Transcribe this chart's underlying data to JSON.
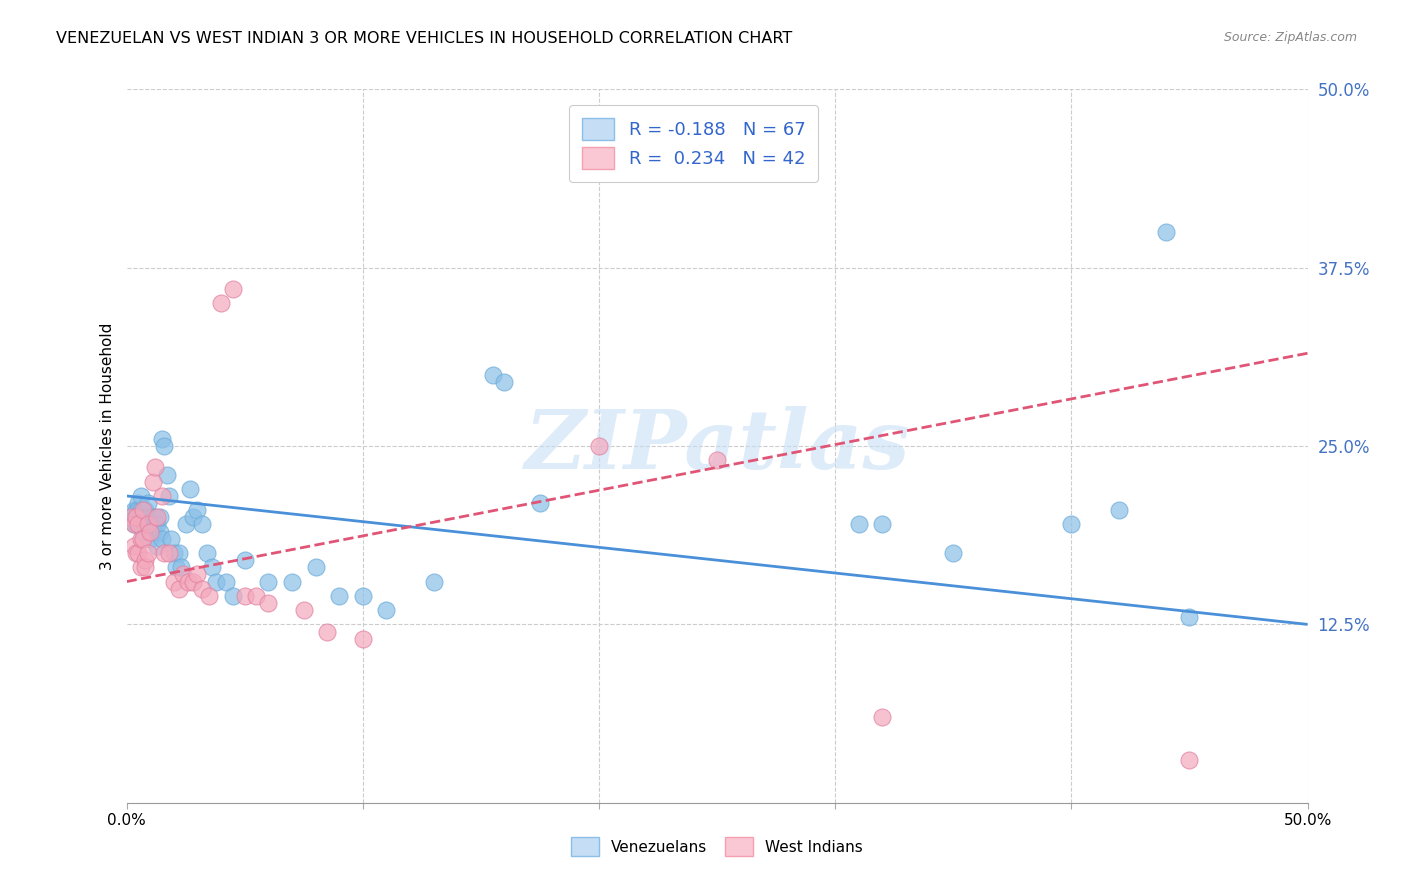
{
  "title": "VENEZUELAN VS WEST INDIAN 3 OR MORE VEHICLES IN HOUSEHOLD CORRELATION CHART",
  "source": "Source: ZipAtlas.com",
  "ylabel": "3 or more Vehicles in Household",
  "ytick_labels": [
    "12.5%",
    "25.0%",
    "37.5%",
    "50.0%"
  ],
  "ytick_values": [
    0.125,
    0.25,
    0.375,
    0.5
  ],
  "xlim": [
    0.0,
    0.5
  ],
  "ylim": [
    0.0,
    0.5
  ],
  "venezuelan_color": "#8bbfe8",
  "venezuelan_edge": "#6aaad8",
  "west_indian_color": "#f4a8bc",
  "west_indian_edge": "#e080a0",
  "venezuelan_R": -0.188,
  "venezuelan_N": 67,
  "west_indian_R": 0.234,
  "west_indian_N": 42,
  "venezuelan_trend_x": [
    0.0,
    0.5
  ],
  "venezuelan_trend_y": [
    0.215,
    0.125
  ],
  "west_indian_trend_x": [
    0.0,
    0.5
  ],
  "west_indian_trend_y": [
    0.155,
    0.315
  ],
  "ven_line_color": "#4a90d9",
  "wi_line_color": "#e05575",
  "watermark_text": "ZIPatlas",
  "watermark_color": "#c8dff5",
  "background_color": "#ffffff",
  "grid_color": "#cccccc",
  "legend_label_color": "#3366cc",
  "venezuelan_x": [
    0.002,
    0.003,
    0.003,
    0.004,
    0.004,
    0.005,
    0.005,
    0.005,
    0.006,
    0.006,
    0.006,
    0.007,
    0.007,
    0.007,
    0.008,
    0.008,
    0.008,
    0.009,
    0.009,
    0.01,
    0.01,
    0.011,
    0.011,
    0.012,
    0.012,
    0.013,
    0.013,
    0.014,
    0.014,
    0.015,
    0.015,
    0.016,
    0.017,
    0.018,
    0.019,
    0.02,
    0.021,
    0.022,
    0.023,
    0.025,
    0.027,
    0.028,
    0.03,
    0.032,
    0.034,
    0.036,
    0.038,
    0.042,
    0.045,
    0.05,
    0.06,
    0.07,
    0.08,
    0.09,
    0.1,
    0.11,
    0.13,
    0.155,
    0.16,
    0.175,
    0.31,
    0.32,
    0.35,
    0.4,
    0.42,
    0.44,
    0.45
  ],
  "venezuelan_y": [
    0.2,
    0.205,
    0.195,
    0.205,
    0.195,
    0.21,
    0.205,
    0.2,
    0.205,
    0.215,
    0.2,
    0.195,
    0.2,
    0.19,
    0.205,
    0.195,
    0.2,
    0.21,
    0.2,
    0.195,
    0.185,
    0.2,
    0.19,
    0.2,
    0.195,
    0.195,
    0.18,
    0.19,
    0.2,
    0.185,
    0.255,
    0.25,
    0.23,
    0.215,
    0.185,
    0.175,
    0.165,
    0.175,
    0.165,
    0.195,
    0.22,
    0.2,
    0.205,
    0.195,
    0.175,
    0.165,
    0.155,
    0.155,
    0.145,
    0.17,
    0.155,
    0.155,
    0.165,
    0.145,
    0.145,
    0.135,
    0.155,
    0.3,
    0.295,
    0.21,
    0.195,
    0.195,
    0.175,
    0.195,
    0.205,
    0.4,
    0.13
  ],
  "west_indian_x": [
    0.002,
    0.003,
    0.003,
    0.004,
    0.004,
    0.005,
    0.005,
    0.006,
    0.006,
    0.007,
    0.007,
    0.008,
    0.008,
    0.009,
    0.009,
    0.01,
    0.011,
    0.012,
    0.013,
    0.015,
    0.016,
    0.018,
    0.02,
    0.022,
    0.024,
    0.026,
    0.028,
    0.03,
    0.032,
    0.035,
    0.04,
    0.045,
    0.05,
    0.055,
    0.06,
    0.075,
    0.085,
    0.1,
    0.2,
    0.25,
    0.32,
    0.45
  ],
  "west_indian_y": [
    0.2,
    0.195,
    0.18,
    0.2,
    0.175,
    0.195,
    0.175,
    0.185,
    0.165,
    0.205,
    0.185,
    0.17,
    0.165,
    0.195,
    0.175,
    0.19,
    0.225,
    0.235,
    0.2,
    0.215,
    0.175,
    0.175,
    0.155,
    0.15,
    0.16,
    0.155,
    0.155,
    0.16,
    0.15,
    0.145,
    0.35,
    0.36,
    0.145,
    0.145,
    0.14,
    0.135,
    0.12,
    0.115,
    0.25,
    0.24,
    0.06,
    0.03
  ]
}
